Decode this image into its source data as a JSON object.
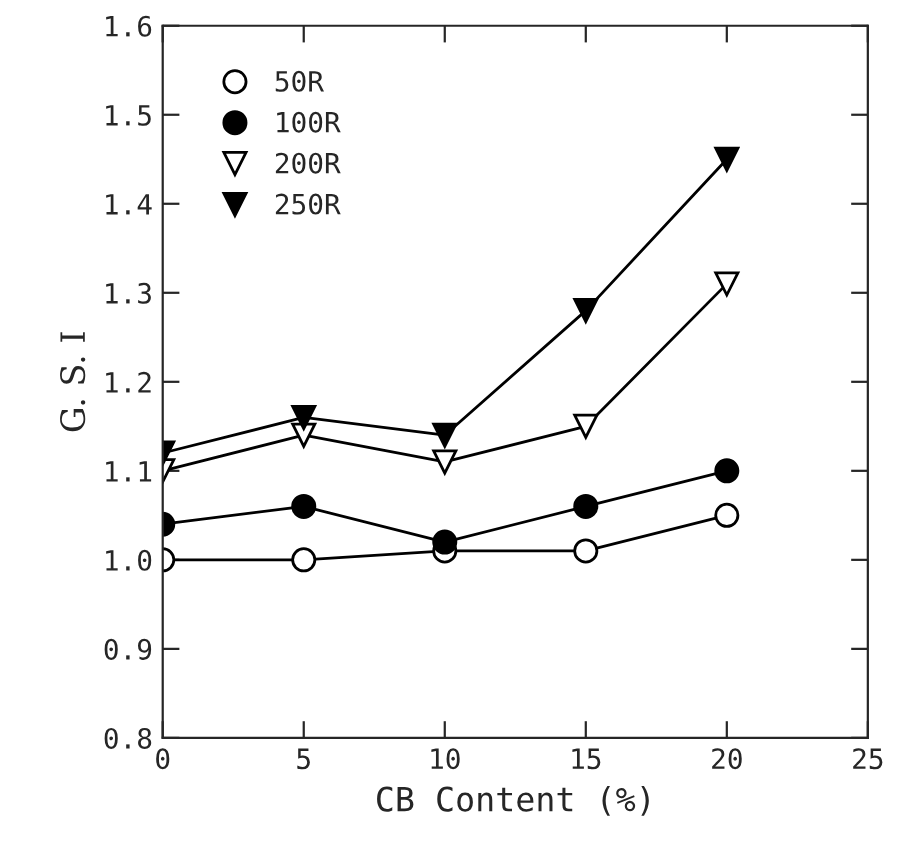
{
  "chart_data": {
    "type": "line",
    "xlabel": "CB Content (%)",
    "ylabel": "G. S. I",
    "x": [
      0,
      5,
      10,
      15,
      20
    ],
    "series": [
      {
        "name": "50R",
        "color": "#000000",
        "marker": "circle",
        "values": [
          1.0,
          1.0,
          1.01,
          1.01,
          1.05
        ]
      },
      {
        "name": "100R",
        "color": "#000000",
        "marker": "circle",
        "values": [
          1.04,
          1.06,
          1.02,
          1.06,
          1.1
        ]
      },
      {
        "name": "200R",
        "color": "#000000",
        "marker": "triangle",
        "values": [
          1.1,
          1.14,
          1.11,
          1.15,
          1.31
        ]
      },
      {
        "name": "250R",
        "color": "#000000",
        "marker": "triangle",
        "values": [
          1.12,
          1.16,
          1.14,
          1.28,
          1.45
        ]
      }
    ],
    "xlim": [
      0,
      25
    ],
    "xticks": [
      0,
      5,
      10,
      15,
      20,
      25
    ],
    "ylim": [
      0.8,
      1.6
    ],
    "yticks": [
      {
        "value": 0.8,
        "label": "0.8"
      },
      {
        "value": 0.9,
        "label": "0.9"
      },
      {
        "value": 1.0,
        "label": "1.0"
      },
      {
        "value": 1.1,
        "label": "1.1"
      },
      {
        "value": 1.2,
        "label": "1.2"
      },
      {
        "value": 1.3,
        "label": "1.3"
      },
      {
        "value": 1.4,
        "label": "1.4"
      },
      {
        "value": 1.5,
        "label": "1.5"
      },
      {
        "value": 1.6,
        "label": "1.6"
      }
    ],
    "grid": false,
    "legend": "top left",
    "line_style": "solid"
  }
}
